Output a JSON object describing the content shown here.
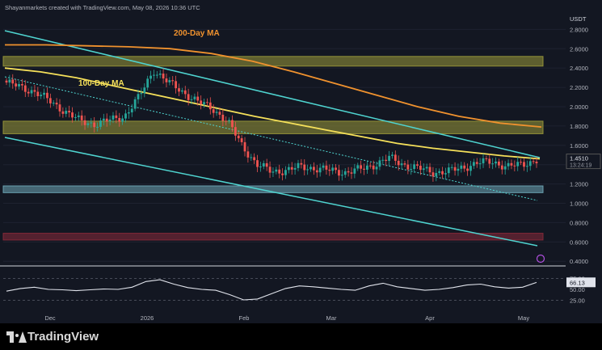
{
  "header": {
    "credit": "Shayanmarkets created with TradingView.com, May 08, 2026 10:36 UTC"
  },
  "footer": {
    "brand": "TradingView"
  },
  "chart_data": {
    "type": "candlestick",
    "price_unit_label": "USDT",
    "x_tick_labels": [
      "Dec",
      "2026",
      "Feb",
      "Mar",
      "Apr",
      "May"
    ],
    "y_ticks": [
      2.8,
      2.6,
      2.4,
      2.2,
      2.0,
      1.8,
      1.6,
      1.4,
      1.2,
      1.0,
      0.8,
      0.6,
      0.4
    ],
    "y_tick_labels": [
      "2.8000",
      "2.6000",
      "2.4000",
      "2.2000",
      "2.0000",
      "1.8000",
      "1.6000",
      "1.4000",
      "1.2000",
      "1.0000",
      "0.8000",
      "0.6000",
      "0.4000"
    ],
    "ylim": [
      0.36,
      2.92
    ],
    "current_price_label": "1.4510",
    "countdown_label": "13:24:19",
    "colors": {
      "up": "#26a69a",
      "down": "#ef5350",
      "ma100": "#f5e05a",
      "ma200": "#f0922e",
      "channel": "#4fd4d0",
      "zone_yellow": "#9c9a3a",
      "zone_blue": "#6fa8b8",
      "zone_red": "#8a2a3a",
      "text": "#b2b5be"
    },
    "ohlc_key_closes": [
      2.25,
      2.2,
      2.15,
      2.05,
      1.95,
      1.85,
      1.82,
      1.86,
      1.9,
      2.1,
      2.38,
      2.25,
      2.15,
      2.05,
      1.98,
      1.85,
      1.6,
      1.4,
      1.33,
      1.34,
      1.38,
      1.36,
      1.34,
      1.32,
      1.35,
      1.4,
      1.47,
      1.4,
      1.36,
      1.32,
      1.33,
      1.37,
      1.42,
      1.43,
      1.38,
      1.4,
      1.45
    ],
    "ma_100": {
      "label": "100-Day MA",
      "values": [
        2.4,
        2.36,
        2.3,
        2.22,
        2.14,
        2.06,
        1.98,
        1.9,
        1.83,
        1.76,
        1.69,
        1.62,
        1.57,
        1.53,
        1.49,
        1.46
      ]
    },
    "ma_200": {
      "label": "200-Day MA",
      "values": [
        2.64,
        2.64,
        2.63,
        2.62,
        2.6,
        2.55,
        2.47,
        2.36,
        2.24,
        2.12,
        2.0,
        1.9,
        1.83,
        1.79
      ]
    },
    "zones": [
      {
        "name": "upper-supply",
        "from": 2.42,
        "to": 2.52
      },
      {
        "name": "mid-supply",
        "from": 1.72,
        "to": 1.85
      },
      {
        "name": "demand",
        "from": 1.11,
        "to": 1.18
      },
      {
        "name": "lower-demand",
        "from": 0.62,
        "to": 0.69
      }
    ],
    "rsi": {
      "y_ticks": [
        75,
        50,
        25
      ],
      "y_tick_labels": [
        "75.00",
        "50.00",
        "25.00"
      ],
      "current_label": "66.13",
      "values": [
        46,
        52,
        55,
        50,
        49,
        47,
        49,
        51,
        50,
        55,
        68,
        72,
        62,
        54,
        50,
        48,
        38,
        26,
        28,
        40,
        52,
        58,
        56,
        53,
        50,
        48,
        58,
        64,
        56,
        52,
        48,
        50,
        54,
        60,
        62,
        56,
        53,
        55,
        66
      ]
    }
  }
}
